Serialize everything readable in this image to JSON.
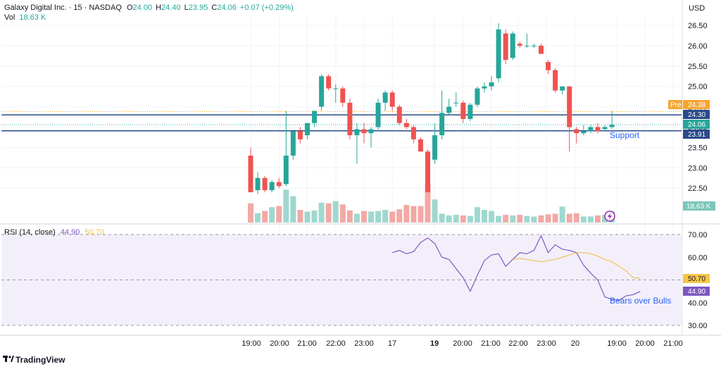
{
  "header": {
    "symbol": "Galaxy Digital Inc. · 15 · NASDAQ",
    "o_label": "O",
    "o_value": "24.00",
    "h_label": "H",
    "h_value": "24.40",
    "l_label": "L",
    "l_value": "23.95",
    "c_label": "C",
    "c_value": "24.06",
    "change": "+0.07 (+0.29%)",
    "vol_label": "Vol",
    "vol_value": "18.63 K",
    "currency": "USD"
  },
  "rsi_header": {
    "name": "RSI (14, close)",
    "rsi_value": "44.90",
    "ma_value": "50.70"
  },
  "annotations": {
    "support": "Support",
    "bears": "Bears over Bulls"
  },
  "price_tags": {
    "pre_label": "Pre",
    "pre_value": "24.38",
    "resistance": "24.30",
    "last": "24.06",
    "support": "23.91",
    "volume": "18.63 K"
  },
  "rsi_tags": {
    "ma": "50.70",
    "rsi": "44.90"
  },
  "brand": "TradingView",
  "colors": {
    "up": "#26a69a",
    "down": "#ef5350",
    "up_vol": "#9fd8cf",
    "down_vol": "#f2a9a6",
    "line_blue": "#2962ff",
    "rsi_line": "#7e57c2",
    "rsi_ma": "#f0c35a",
    "rsi_band": "#f3effa"
  },
  "chart_data": [
    {
      "type": "candlestick",
      "price_axis_ticks": [
        "26.50",
        "26.00",
        "25.50",
        "25.00",
        "24.50",
        "24.00",
        "23.50",
        "23.00",
        "22.50"
      ],
      "time_axis_ticks": [
        "19:00",
        "20:00",
        "21:00",
        "22:00",
        "23:00",
        "17",
        "19",
        "20:00",
        "21:00",
        "22:00",
        "23:00",
        "20",
        "19:00",
        "20:00",
        "21:00"
      ],
      "ylim": [
        22.2,
        26.8
      ],
      "horizontal_lines": [
        {
          "name": "resistance",
          "value": 24.3
        },
        {
          "name": "support",
          "value": 23.91
        }
      ],
      "candles": [
        {
          "o": 23.3,
          "h": 23.5,
          "l": 22.4,
          "c": 22.4
        },
        {
          "o": 22.45,
          "h": 22.9,
          "l": 22.35,
          "c": 22.75
        },
        {
          "o": 22.75,
          "h": 22.8,
          "l": 22.4,
          "c": 22.45
        },
        {
          "o": 22.45,
          "h": 22.7,
          "l": 22.4,
          "c": 22.65
        },
        {
          "o": 22.65,
          "h": 22.75,
          "l": 22.5,
          "c": 22.55
        },
        {
          "o": 22.6,
          "h": 24.4,
          "l": 22.55,
          "c": 23.3
        },
        {
          "o": 23.3,
          "h": 23.9,
          "l": 23.2,
          "c": 23.9
        },
        {
          "o": 23.9,
          "h": 24.0,
          "l": 23.6,
          "c": 23.7
        },
        {
          "o": 23.8,
          "h": 24.1,
          "l": 23.7,
          "c": 24.1
        },
        {
          "o": 24.1,
          "h": 24.4,
          "l": 24.0,
          "c": 24.4
        },
        {
          "o": 24.5,
          "h": 25.3,
          "l": 24.4,
          "c": 25.25
        },
        {
          "o": 25.25,
          "h": 25.3,
          "l": 24.9,
          "c": 24.95
        },
        {
          "o": 24.95,
          "h": 25.05,
          "l": 24.6,
          "c": 24.95
        },
        {
          "o": 24.95,
          "h": 25.0,
          "l": 24.5,
          "c": 24.6
        },
        {
          "o": 24.6,
          "h": 24.7,
          "l": 23.7,
          "c": 23.8
        },
        {
          "o": 23.8,
          "h": 24.1,
          "l": 23.1,
          "c": 23.95
        },
        {
          "o": 23.95,
          "h": 24.1,
          "l": 23.6,
          "c": 23.85
        },
        {
          "o": 23.85,
          "h": 24.0,
          "l": 23.5,
          "c": 23.95
        },
        {
          "o": 24.0,
          "h": 24.7,
          "l": 23.9,
          "c": 24.6
        },
        {
          "o": 24.6,
          "h": 24.9,
          "l": 24.4,
          "c": 24.85
        },
        {
          "o": 24.85,
          "h": 24.9,
          "l": 24.4,
          "c": 24.5
        },
        {
          "o": 24.5,
          "h": 24.55,
          "l": 24.05,
          "c": 24.1
        },
        {
          "o": 24.1,
          "h": 24.2,
          "l": 23.95,
          "c": 24.0
        },
        {
          "o": 24.0,
          "h": 24.05,
          "l": 23.6,
          "c": 23.7
        },
        {
          "o": 23.7,
          "h": 23.75,
          "l": 23.4,
          "c": 23.4
        },
        {
          "o": 23.4,
          "h": 23.45,
          "l": 22.4,
          "c": 22.4
        },
        {
          "o": 23.2,
          "h": 24.1,
          "l": 23.1,
          "c": 23.8
        },
        {
          "o": 23.8,
          "h": 24.9,
          "l": 23.7,
          "c": 24.35
        },
        {
          "o": 24.35,
          "h": 24.7,
          "l": 24.3,
          "c": 24.5
        },
        {
          "o": 24.6,
          "h": 24.85,
          "l": 24.5,
          "c": 24.6
        },
        {
          "o": 24.6,
          "h": 24.65,
          "l": 24.1,
          "c": 24.2
        },
        {
          "o": 24.2,
          "h": 24.6,
          "l": 24.15,
          "c": 24.55
        },
        {
          "o": 24.55,
          "h": 25.0,
          "l": 24.5,
          "c": 24.95
        },
        {
          "o": 24.95,
          "h": 25.1,
          "l": 24.85,
          "c": 25.0
        },
        {
          "o": 25.0,
          "h": 25.25,
          "l": 24.9,
          "c": 25.1
        },
        {
          "o": 25.2,
          "h": 26.55,
          "l": 25.1,
          "c": 26.4
        },
        {
          "o": 26.3,
          "h": 26.4,
          "l": 25.55,
          "c": 25.65
        },
        {
          "o": 25.7,
          "h": 26.35,
          "l": 25.65,
          "c": 26.3
        },
        {
          "o": 26.05,
          "h": 26.1,
          "l": 25.95,
          "c": 26.0
        },
        {
          "o": 26.0,
          "h": 26.3,
          "l": 25.95,
          "c": 26.0
        },
        {
          "o": 26.0,
          "h": 26.05,
          "l": 25.95,
          "c": 26.0
        },
        {
          "o": 26.0,
          "h": 26.05,
          "l": 25.8,
          "c": 25.8
        },
        {
          "o": 25.6,
          "h": 25.65,
          "l": 25.3,
          "c": 25.4
        },
        {
          "o": 25.4,
          "h": 25.45,
          "l": 24.85,
          "c": 24.9
        },
        {
          "o": 24.9,
          "h": 25.0,
          "l": 24.8,
          "c": 25.0
        },
        {
          "o": 25.0,
          "h": 25.0,
          "l": 23.4,
          "c": 24.0
        },
        {
          "o": 23.95,
          "h": 24.0,
          "l": 23.6,
          "c": 23.85
        },
        {
          "o": 23.85,
          "h": 24.05,
          "l": 23.8,
          "c": 23.9
        },
        {
          "o": 23.9,
          "h": 24.05,
          "l": 23.85,
          "c": 24.0
        },
        {
          "o": 24.0,
          "h": 24.1,
          "l": 23.85,
          "c": 23.9
        },
        {
          "o": 23.95,
          "h": 24.05,
          "l": 23.9,
          "c": 24.0
        },
        {
          "o": 24.0,
          "h": 24.4,
          "l": 23.95,
          "c": 24.06
        }
      ],
      "volume_relative": [
        0.35,
        0.17,
        0.21,
        0.28,
        0.3,
        0.6,
        0.48,
        0.23,
        0.2,
        0.22,
        0.36,
        0.35,
        0.39,
        0.33,
        0.22,
        0.16,
        0.21,
        0.2,
        0.21,
        0.23,
        0.2,
        0.24,
        0.32,
        0.3,
        0.3,
        0.7,
        0.42,
        0.16,
        0.13,
        0.14,
        0.13,
        0.12,
        0.28,
        0.23,
        0.21,
        0.12,
        0.14,
        0.13,
        0.14,
        0.12,
        0.11,
        0.13,
        0.15,
        0.16,
        0.29,
        0.16,
        0.17,
        0.11,
        0.11,
        0.13,
        0.14,
        0.21
      ]
    },
    {
      "type": "line",
      "title": "RSI (14, close)",
      "ylim": [
        30,
        70
      ],
      "y_ticks": [
        "70.00",
        "60.00",
        "50.00",
        "40.00",
        "30.00"
      ],
      "series": [
        {
          "name": "RSI",
          "start_index": 20,
          "values": [
            62.0,
            63.0,
            61.5,
            62.5,
            66.5,
            68.5,
            66.0,
            60.0,
            59.0,
            55.0,
            51.0,
            45.0,
            52.0,
            58.5,
            61.0,
            61.5,
            56.0,
            59.0,
            62.0,
            61.5,
            63.0,
            69.5,
            62.0,
            65.5,
            63.5,
            63.0,
            62.0,
            56.5,
            53.0,
            50.0,
            42.5,
            41.5,
            41.0,
            43.0,
            43.5,
            44.9
          ]
        },
        {
          "name": "RSI-based MA",
          "start_index": 37,
          "values": [
            59.0,
            59.5,
            59.0,
            58.5,
            58.0,
            58.5,
            59.0,
            60.0,
            61.0,
            62.0,
            62.0,
            61.5,
            60.5,
            59.0,
            58.0,
            56.0,
            54.0,
            51.0,
            50.7
          ]
        }
      ]
    }
  ]
}
